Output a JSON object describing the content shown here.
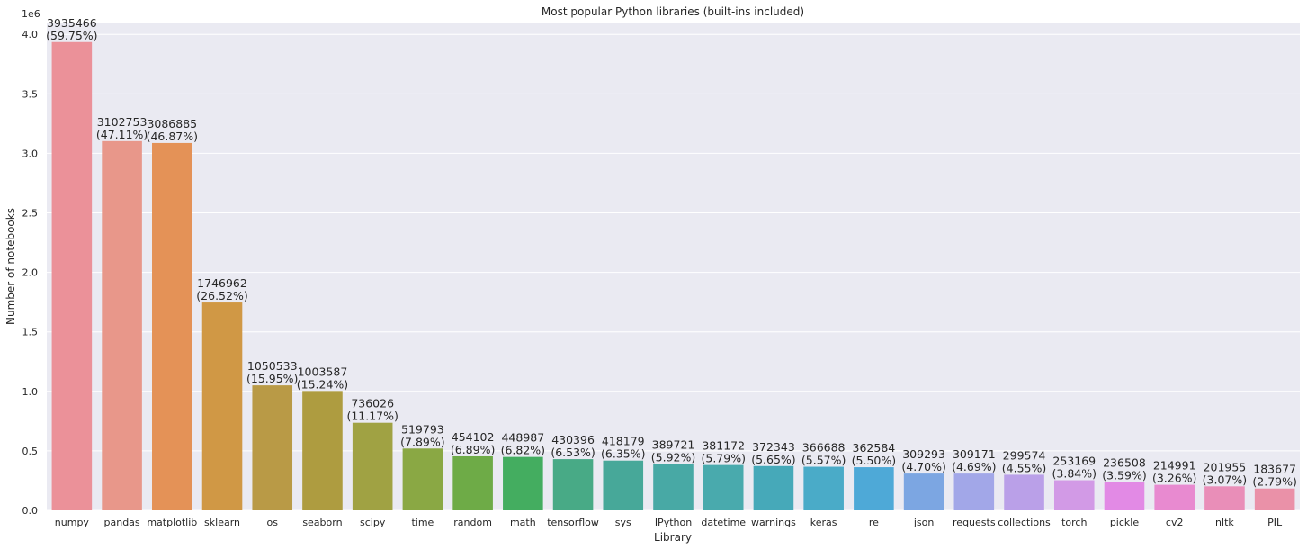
{
  "chart_data": {
    "type": "bar",
    "title": "Most popular Python libraries (built-ins included)",
    "xlabel": "Library",
    "ylabel": "Number of notebooks",
    "y_offset_text": "1e6",
    "ylim": [
      0,
      4100000
    ],
    "y_ticks": [
      0,
      500000,
      1000000,
      1500000,
      2000000,
      2500000,
      3000000,
      3500000,
      4000000
    ],
    "y_tick_labels": [
      "0.0",
      "0.5",
      "1.0",
      "1.5",
      "2.0",
      "2.5",
      "3.0",
      "3.5",
      "4.0"
    ],
    "grid": true,
    "background": "#eaeaf2",
    "categories": [
      "numpy",
      "pandas",
      "matplotlib",
      "sklearn",
      "os",
      "seaborn",
      "scipy",
      "time",
      "random",
      "math",
      "tensorflow",
      "sys",
      "IPython",
      "datetime",
      "warnings",
      "keras",
      "re",
      "json",
      "requests",
      "collections",
      "torch",
      "pickle",
      "cv2",
      "nltk",
      "PIL"
    ],
    "values": [
      3935466,
      3102753,
      3086885,
      1746962,
      1050533,
      1003587,
      736026,
      519793,
      454102,
      448987,
      430396,
      418179,
      389721,
      381172,
      372343,
      366688,
      362584,
      309293,
      309171,
      299574,
      253169,
      236508,
      214991,
      201955,
      183677
    ],
    "percent_labels": [
      "(59.75%)",
      "(47.11%)",
      "(46.87%)",
      "(26.52%)",
      "(15.95%)",
      "(15.24%)",
      "(11.17%)",
      "(7.89%)",
      "(6.89%)",
      "(6.82%)",
      "(6.53%)",
      "(6.35%)",
      "(5.92%)",
      "(5.79%)",
      "(5.65%)",
      "(5.57%)",
      "(5.50%)",
      "(4.70%)",
      "(4.69%)",
      "(4.55%)",
      "(3.84%)",
      "(3.59%)",
      "(3.26%)",
      "(3.07%)",
      "(2.79%)"
    ],
    "colors": [
      "#eb9199",
      "#e8978a",
      "#e49257",
      "#d09845",
      "#b99a46",
      "#ae9c40",
      "#a0a243",
      "#8aa844",
      "#6eab47",
      "#44ad60",
      "#48aa86",
      "#47a899",
      "#48a9a5",
      "#49aaad",
      "#46a9b9",
      "#4aabc8",
      "#4ea9d7",
      "#7ca6e2",
      "#a2a7e8",
      "#baa0e8",
      "#d29ae6",
      "#e28ae5",
      "#e88ad0",
      "#e98eb8",
      "#ea91a8"
    ]
  }
}
